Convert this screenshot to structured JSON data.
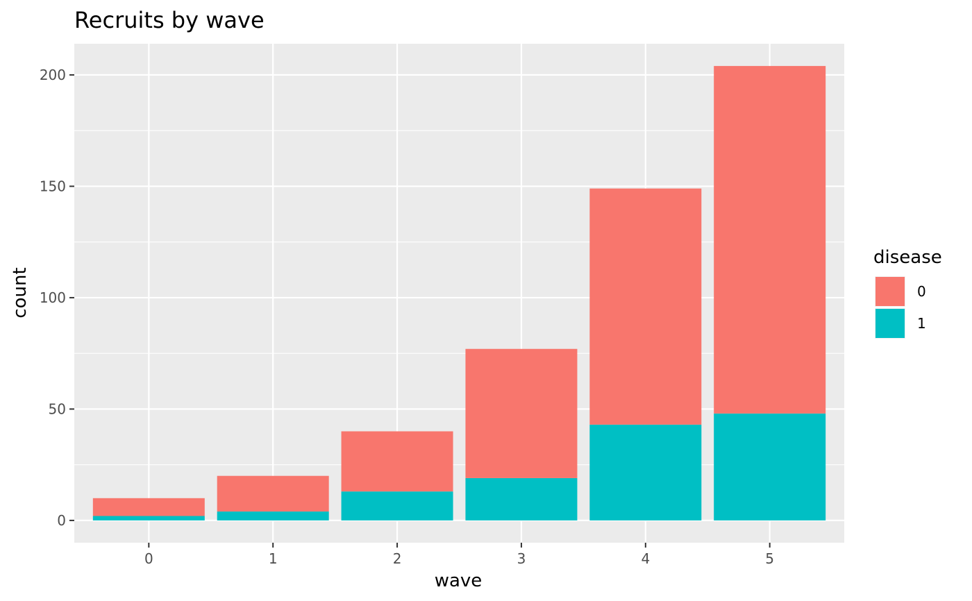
{
  "chart_data": {
    "type": "bar",
    "stacked": true,
    "title": "Recruits by wave",
    "xlabel": "wave",
    "ylabel": "count",
    "categories": [
      "0",
      "1",
      "2",
      "3",
      "4",
      "5"
    ],
    "ylim": [
      -10,
      214
    ],
    "yticks": [
      0,
      50,
      100,
      150,
      200
    ],
    "grid": true,
    "legend": {
      "title": "disease",
      "position": "right",
      "entries": [
        "0",
        "1"
      ]
    },
    "series": [
      {
        "name": "0",
        "color": "#F8766D",
        "values": [
          8,
          16,
          27,
          58,
          106,
          156
        ]
      },
      {
        "name": "1",
        "color": "#00BFC4",
        "values": [
          2,
          4,
          13,
          19,
          43,
          48
        ]
      }
    ],
    "panel_background": "#EBEBEB",
    "grid_color": "#FFFFFF"
  }
}
